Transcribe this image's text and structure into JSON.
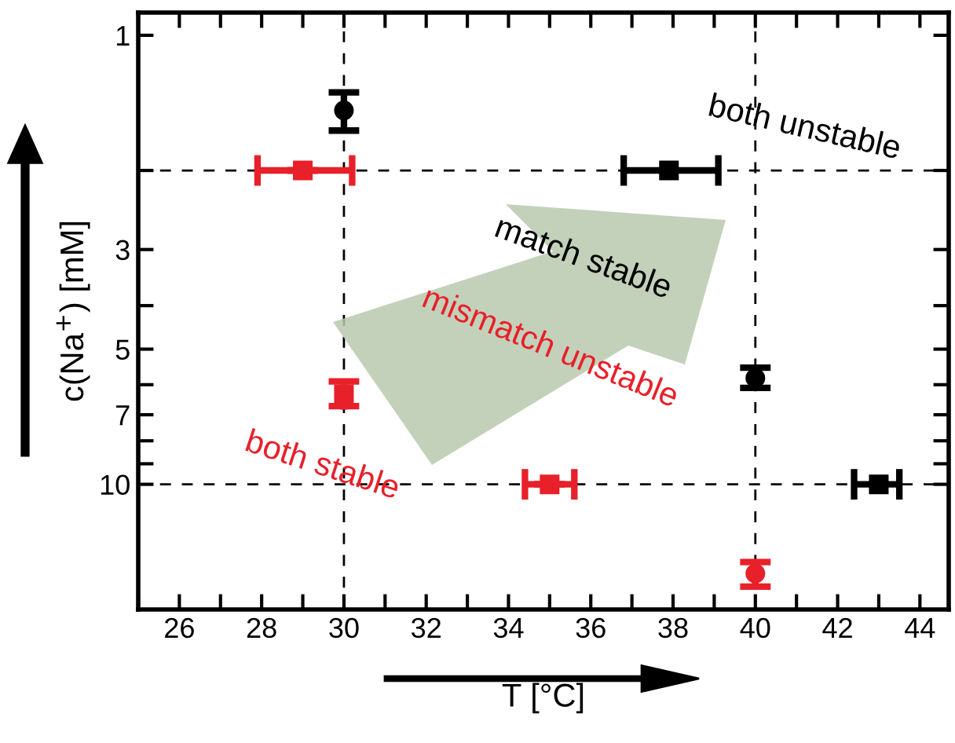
{
  "chart_data": {
    "type": "scatter",
    "xlabel": "T [°C]",
    "ylabel": "c(Na$^{+}$) [mM]",
    "log": "y",
    "xlim": [
      25,
      44.7
    ],
    "ylim": [
      19,
      0.89
    ],
    "xticks": [
      {
        "value": 25,
        "label": null
      },
      26,
      {
        "value": 27,
        "label": null
      },
      28,
      {
        "value": 29,
        "label": null
      },
      30,
      {
        "value": 31,
        "label": null
      },
      32,
      {
        "value": 33,
        "label": null
      },
      34,
      {
        "value": 35,
        "label": null
      },
      36,
      {
        "value": 37,
        "label": null
      },
      38,
      {
        "value": 39,
        "label": null
      },
      40,
      {
        "value": 41,
        "label": null
      },
      42,
      {
        "value": 43,
        "label": null
      },
      44
    ],
    "yticks": [
      1,
      {
        "value": 2,
        "label": null
      },
      3,
      {
        "value": 4,
        "label": null
      },
      5,
      {
        "value": 6,
        "label": null
      },
      7,
      {
        "value": 8,
        "label": null
      },
      {
        "value": 9,
        "label": null
      },
      10
    ],
    "grid": false,
    "series": [
      {
        "color": "#000000",
        "marker": "circle",
        "x": [
          30.0,
          40.0
        ],
        "values": [
          1.47,
          5.8
        ],
        "errors": [
          [
            1.34,
            1.63
          ],
          [
            5.5,
            6.1
          ]
        ]
      },
      {
        "color": "#000000",
        "marker": "square",
        "x": [
          37.9,
          43.0
        ],
        "values": [
          2,
          10
        ],
        "xerrors": [
          [
            36.8,
            39.1
          ],
          [
            42.4,
            43.5
          ]
        ]
      },
      {
        "color": "#e8202a",
        "marker": "square",
        "x": [
          29.0,
          30.0,
          35.0
        ],
        "values": [
          2,
          6.3,
          10
        ],
        "xerrors": [
          [
            27.9,
            30.2
          ],
          null,
          [
            34.4,
            35.6
          ]
        ],
        "errors": [
          null,
          [
            5.9,
            6.7
          ],
          null
        ]
      },
      {
        "color": "#e8202a",
        "marker": "circle",
        "x": [
          40.0
        ],
        "values": [
          15.8
        ],
        "errors": [
          [
            14.9,
            16.9
          ]
        ]
      }
    ],
    "ref_lines": [
      {
        "axis": "x",
        "value": 30,
        "color": "#000000",
        "line_style": "dashed"
      },
      {
        "axis": "x",
        "value": 40,
        "color": "#000000",
        "line_style": "dashed"
      },
      {
        "axis": "y",
        "value": 2,
        "color": "#000000",
        "line_style": "dashed"
      },
      {
        "axis": "y",
        "value": 10,
        "color": "#000000",
        "line_style": "dashed"
      }
    ],
    "annotations": [
      "both unstable",
      "match stable",
      "mismatch unstable",
      "both stable"
    ]
  }
}
